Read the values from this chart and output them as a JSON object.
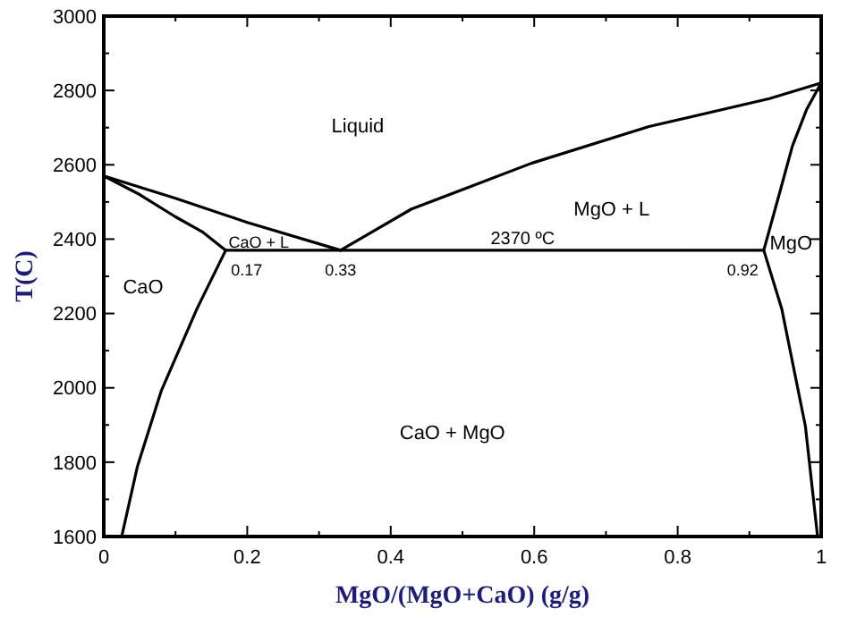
{
  "chart_data": {
    "type": "line",
    "xlabel": "MgO/(MgO+CaO) (g/g)",
    "ylabel": "T(C)",
    "xlim": [
      0,
      1
    ],
    "ylim": [
      1600,
      3000
    ],
    "xticks": [
      0,
      {
        "value": 0.1,
        "label": null
      },
      0.2,
      {
        "value": 0.3,
        "label": null
      },
      0.4,
      {
        "value": 0.5,
        "label": null
      },
      0.6,
      {
        "value": 0.7,
        "label": null
      },
      0.8,
      {
        "value": 0.9,
        "label": null
      },
      1
    ],
    "yticks": [
      1600,
      {
        "value": 1700,
        "label": null
      },
      1800,
      {
        "value": 1900,
        "label": null
      },
      2000,
      {
        "value": 2100,
        "label": null
      },
      2200,
      {
        "value": 2300,
        "label": null
      },
      2400,
      {
        "value": 2500,
        "label": null
      },
      2600,
      {
        "value": 2700,
        "label": null
      },
      2800,
      {
        "value": 2900,
        "label": null
      },
      3000
    ],
    "grid": false,
    "marker": "none",
    "line_style": "solid",
    "series": [
      {
        "color": "#000000",
        "x": [
          0,
          0.1,
          0.2,
          0.33
        ],
        "values": [
          2570,
          2510,
          2445,
          2370
        ]
      },
      {
        "color": "#000000",
        "x": [
          0,
          0.05,
          0.1,
          0.137,
          0.17
        ],
        "values": [
          2570,
          2520,
          2460,
          2420,
          2370
        ]
      },
      {
        "color": "#000000",
        "x": [
          0.17,
          0.92
        ],
        "values": [
          2370,
          2370
        ]
      },
      {
        "color": "#000000",
        "x": [
          0.33,
          0.429,
          0.596,
          0.76,
          0.928,
          1
        ],
        "values": [
          2370,
          2481,
          2604,
          2703,
          2778,
          2820
        ]
      },
      {
        "color": "#000000",
        "x": [
          0.92,
          0.94,
          0.96,
          0.98,
          1
        ],
        "values": [
          2370,
          2510,
          2651,
          2750,
          2820
        ]
      },
      {
        "color": "#000000",
        "x": [
          0.92,
          0.945,
          0.978,
          0.995
        ],
        "values": [
          2370,
          2213,
          1897,
          1600
        ]
      },
      {
        "color": "#000000",
        "x": [
          0.17,
          0.13,
          0.08,
          0.047,
          0.025
        ],
        "values": [
          2370,
          2213,
          1991,
          1789,
          1600
        ]
      }
    ],
    "annotations": [
      "Liquid",
      "CaO + L",
      "MgO + L",
      "CaO",
      "MgO",
      "CaO + MgO",
      {
        "text": "2370 ºC",
        "x": 0.584,
        "y": 2370
      },
      {
        "text": "0.17",
        "x": 0.17,
        "y": 2370
      },
      {
        "text": "0.33",
        "x": 0.33,
        "y": 2370
      },
      {
        "text": "0.92",
        "x": 0.92,
        "y": 2370
      }
    ]
  }
}
